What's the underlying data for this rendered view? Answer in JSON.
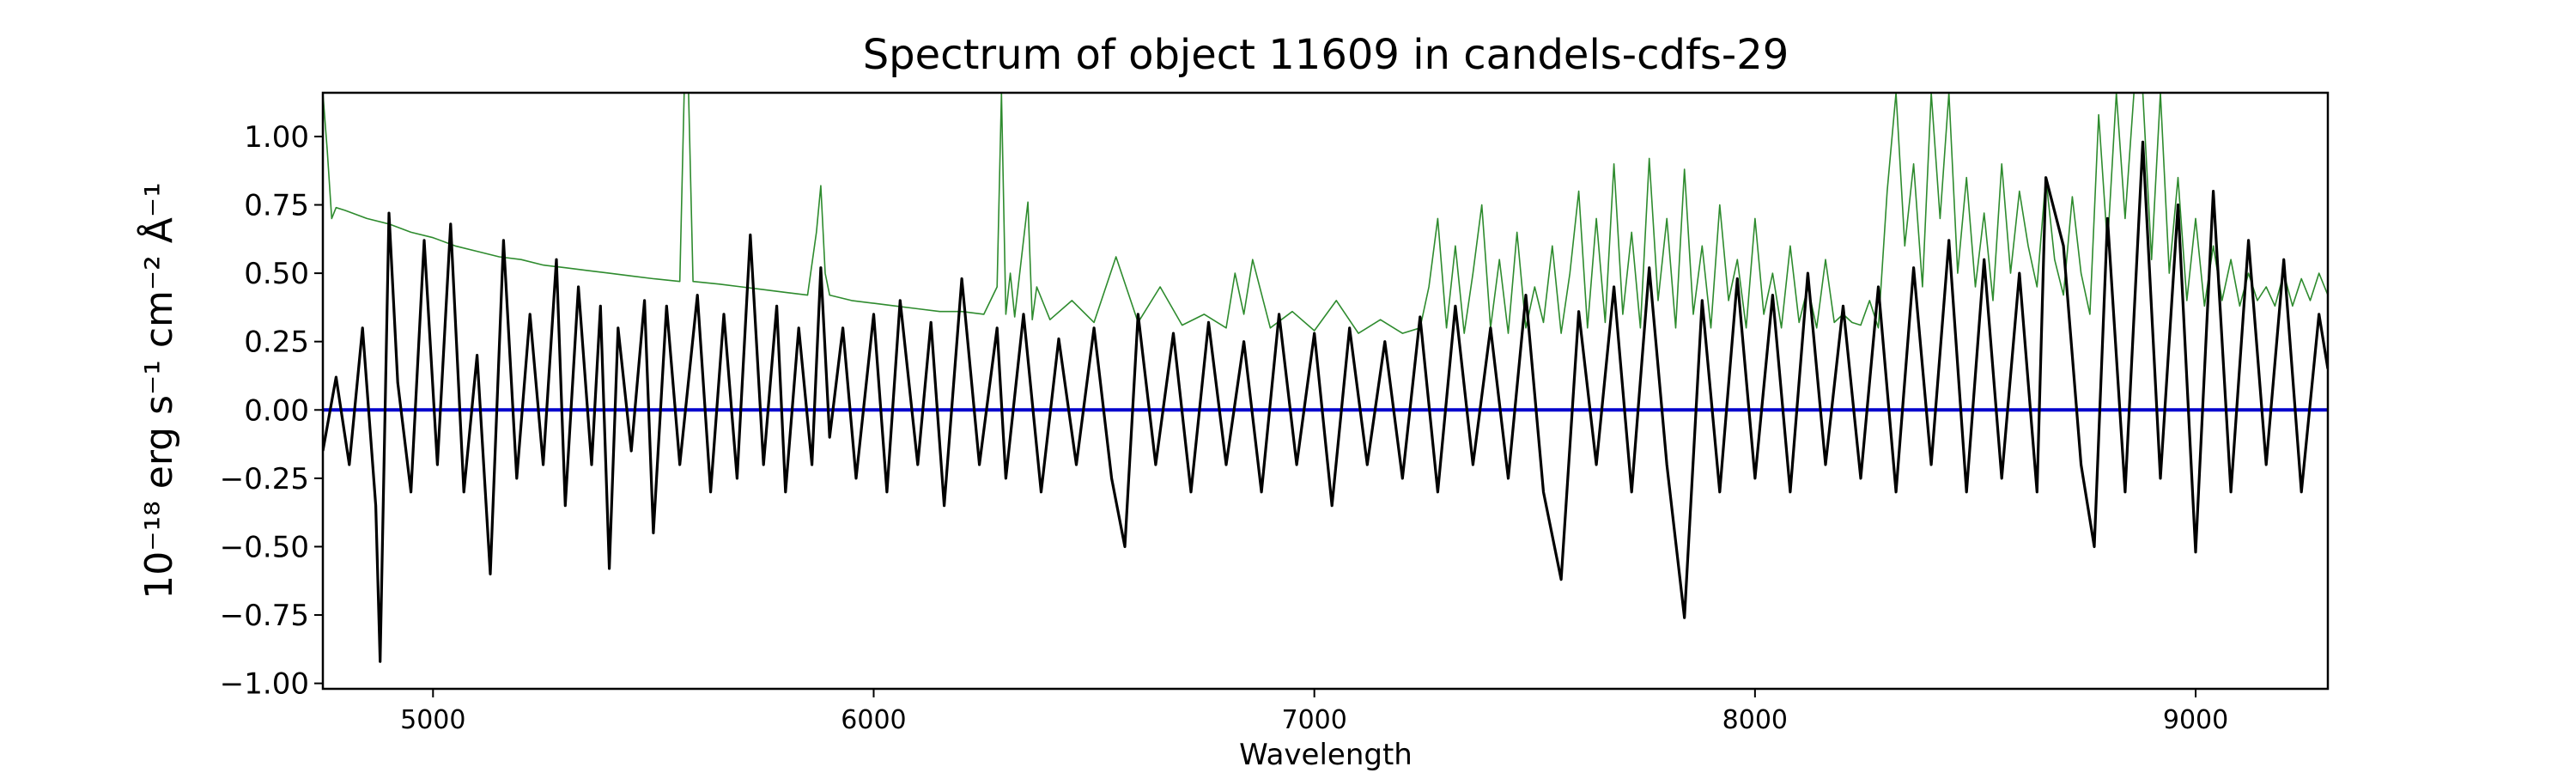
{
  "chart_data": {
    "type": "line",
    "title": "Spectrum of object 11609 in candels-cdfs-29",
    "xlabel": "Wavelength",
    "ylabel": "10⁻¹⁸ erg s⁻¹ cm⁻² Å⁻¹",
    "xlim": [
      4750,
      9300
    ],
    "ylim": [
      -1.02,
      1.16
    ],
    "xticks": [
      5000,
      6000,
      7000,
      8000,
      9000
    ],
    "yticks": [
      -1.0,
      -0.75,
      -0.5,
      -0.25,
      0.0,
      0.25,
      0.5,
      0.75,
      1.0
    ],
    "xtick_labels": [
      "5000",
      "6000",
      "7000",
      "8000",
      "9000"
    ],
    "ytick_labels": [
      "−1.00",
      "−0.75",
      "−0.50",
      "−0.25",
      "0.00",
      "0.25",
      "0.50",
      "0.75",
      "1.00"
    ],
    "grid": false,
    "series": [
      {
        "role": "flux",
        "color": "#000000",
        "x": [
          4750,
          4780,
          4810,
          4840,
          4870,
          4880,
          4900,
          4920,
          4950,
          4980,
          5010,
          5040,
          5070,
          5100,
          5130,
          5160,
          5190,
          5220,
          5250,
          5280,
          5300,
          5330,
          5360,
          5380,
          5400,
          5420,
          5450,
          5480,
          5500,
          5530,
          5560,
          5600,
          5630,
          5660,
          5690,
          5720,
          5750,
          5780,
          5800,
          5830,
          5860,
          5880,
          5900,
          5930,
          5960,
          6000,
          6030,
          6060,
          6100,
          6130,
          6160,
          6200,
          6240,
          6280,
          6300,
          6340,
          6380,
          6420,
          6460,
          6500,
          6540,
          6570,
          6600,
          6640,
          6680,
          6720,
          6760,
          6800,
          6840,
          6880,
          6920,
          6960,
          7000,
          7040,
          7080,
          7120,
          7160,
          7200,
          7240,
          7280,
          7320,
          7360,
          7400,
          7440,
          7480,
          7520,
          7560,
          7600,
          7640,
          7680,
          7720,
          7760,
          7800,
          7840,
          7880,
          7920,
          7960,
          8000,
          8040,
          8080,
          8120,
          8160,
          8200,
          8240,
          8280,
          8320,
          8360,
          8400,
          8440,
          8480,
          8520,
          8560,
          8600,
          8640,
          8660,
          8700,
          8740,
          8770,
          8800,
          8840,
          8880,
          8920,
          8960,
          9000,
          9040,
          9080,
          9120,
          9160,
          9200,
          9240,
          9280,
          9300
        ],
        "y": [
          -0.15,
          0.12,
          -0.2,
          0.3,
          -0.35,
          -0.92,
          0.72,
          0.1,
          -0.3,
          0.62,
          -0.2,
          0.68,
          -0.3,
          0.2,
          -0.6,
          0.62,
          -0.25,
          0.35,
          -0.2,
          0.55,
          -0.35,
          0.45,
          -0.2,
          0.38,
          -0.58,
          0.3,
          -0.15,
          0.4,
          -0.45,
          0.38,
          -0.2,
          0.42,
          -0.3,
          0.35,
          -0.25,
          0.64,
          -0.2,
          0.38,
          -0.3,
          0.3,
          -0.2,
          0.52,
          -0.1,
          0.3,
          -0.25,
          0.35,
          -0.3,
          0.4,
          -0.2,
          0.32,
          -0.35,
          0.48,
          -0.2,
          0.3,
          -0.25,
          0.35,
          -0.3,
          0.26,
          -0.2,
          0.3,
          -0.25,
          -0.5,
          0.35,
          -0.2,
          0.28,
          -0.3,
          0.32,
          -0.2,
          0.25,
          -0.3,
          0.35,
          -0.2,
          0.28,
          -0.35,
          0.3,
          -0.2,
          0.25,
          -0.25,
          0.34,
          -0.3,
          0.38,
          -0.2,
          0.3,
          -0.25,
          0.42,
          -0.3,
          -0.62,
          0.36,
          -0.2,
          0.45,
          -0.3,
          0.52,
          -0.2,
          -0.76,
          0.4,
          -0.3,
          0.48,
          -0.25,
          0.42,
          -0.3,
          0.5,
          -0.2,
          0.38,
          -0.25,
          0.45,
          -0.3,
          0.52,
          -0.2,
          0.62,
          -0.3,
          0.55,
          -0.25,
          0.5,
          -0.3,
          0.85,
          0.6,
          -0.2,
          -0.5,
          0.7,
          -0.3,
          0.98,
          -0.25,
          0.75,
          -0.52,
          0.8,
          -0.3,
          0.62,
          -0.2,
          0.55,
          -0.3,
          0.35,
          0.15
        ]
      },
      {
        "role": "error",
        "color": "#2e8b2e",
        "x": [
          4750,
          4760,
          4770,
          4780,
          4800,
          4850,
          4900,
          4950,
          5000,
          5050,
          5100,
          5150,
          5200,
          5250,
          5300,
          5350,
          5400,
          5450,
          5500,
          5560,
          5570,
          5580,
          5590,
          5650,
          5700,
          5750,
          5800,
          5850,
          5870,
          5880,
          5890,
          5900,
          5950,
          6000,
          6050,
          6100,
          6150,
          6200,
          6250,
          6280,
          6290,
          6300,
          6310,
          6320,
          6350,
          6360,
          6370,
          6400,
          6450,
          6500,
          6550,
          6600,
          6650,
          6700,
          6750,
          6800,
          6820,
          6840,
          6860,
          6900,
          6950,
          7000,
          7050,
          7100,
          7150,
          7200,
          7240,
          7260,
          7280,
          7300,
          7320,
          7340,
          7360,
          7380,
          7400,
          7420,
          7440,
          7460,
          7480,
          7500,
          7520,
          7540,
          7560,
          7580,
          7600,
          7620,
          7640,
          7660,
          7680,
          7700,
          7720,
          7740,
          7760,
          7780,
          7800,
          7820,
          7840,
          7860,
          7880,
          7900,
          7920,
          7940,
          7960,
          7980,
          8000,
          8020,
          8040,
          8060,
          8080,
          8100,
          8120,
          8140,
          8160,
          8180,
          8200,
          8220,
          8240,
          8260,
          8280,
          8300,
          8320,
          8340,
          8360,
          8380,
          8400,
          8420,
          8440,
          8460,
          8480,
          8500,
          8520,
          8540,
          8560,
          8580,
          8600,
          8620,
          8640,
          8660,
          8680,
          8700,
          8720,
          8740,
          8760,
          8780,
          8800,
          8820,
          8840,
          8860,
          8880,
          8900,
          8920,
          8940,
          8960,
          8980,
          9000,
          9020,
          9040,
          9060,
          9080,
          9100,
          9120,
          9140,
          9160,
          9180,
          9200,
          9220,
          9240,
          9260,
          9280,
          9300
        ],
        "y": [
          1.16,
          0.95,
          0.7,
          0.74,
          0.73,
          0.7,
          0.68,
          0.65,
          0.63,
          0.6,
          0.58,
          0.56,
          0.55,
          0.53,
          0.52,
          0.51,
          0.5,
          0.49,
          0.48,
          0.47,
          1.16,
          1.16,
          0.47,
          0.46,
          0.45,
          0.44,
          0.43,
          0.42,
          0.65,
          0.82,
          0.5,
          0.42,
          0.4,
          0.39,
          0.38,
          0.37,
          0.36,
          0.36,
          0.35,
          0.45,
          1.16,
          0.35,
          0.5,
          0.34,
          0.76,
          0.33,
          0.45,
          0.33,
          0.4,
          0.32,
          0.56,
          0.32,
          0.45,
          0.31,
          0.35,
          0.3,
          0.5,
          0.35,
          0.55,
          0.3,
          0.36,
          0.29,
          0.4,
          0.28,
          0.33,
          0.28,
          0.3,
          0.45,
          0.7,
          0.3,
          0.6,
          0.28,
          0.5,
          0.75,
          0.3,
          0.55,
          0.28,
          0.65,
          0.3,
          0.45,
          0.32,
          0.6,
          0.28,
          0.5,
          0.8,
          0.3,
          0.7,
          0.32,
          0.9,
          0.35,
          0.65,
          0.3,
          0.92,
          0.4,
          0.7,
          0.3,
          0.88,
          0.35,
          0.6,
          0.3,
          0.75,
          0.4,
          0.55,
          0.3,
          0.7,
          0.35,
          0.5,
          0.3,
          0.6,
          0.32,
          0.45,
          0.3,
          0.55,
          0.32,
          0.35,
          0.32,
          0.31,
          0.4,
          0.3,
          0.8,
          1.16,
          0.6,
          0.9,
          0.45,
          1.16,
          0.7,
          1.16,
          0.5,
          0.85,
          0.45,
          0.72,
          0.4,
          0.9,
          0.5,
          0.8,
          0.6,
          0.45,
          0.85,
          0.55,
          0.42,
          0.78,
          0.5,
          0.35,
          1.08,
          0.6,
          1.16,
          0.7,
          1.16,
          1.16,
          0.55,
          1.16,
          0.5,
          0.85,
          0.4,
          0.7,
          0.38,
          0.6,
          0.4,
          0.55,
          0.38,
          0.5,
          0.4,
          0.45,
          0.38,
          0.5,
          0.38,
          0.48,
          0.4,
          0.5,
          0.42
        ]
      },
      {
        "role": "zero",
        "color": "#0000cc",
        "x": [
          4750,
          9300
        ],
        "y": [
          0,
          0
        ]
      }
    ]
  }
}
